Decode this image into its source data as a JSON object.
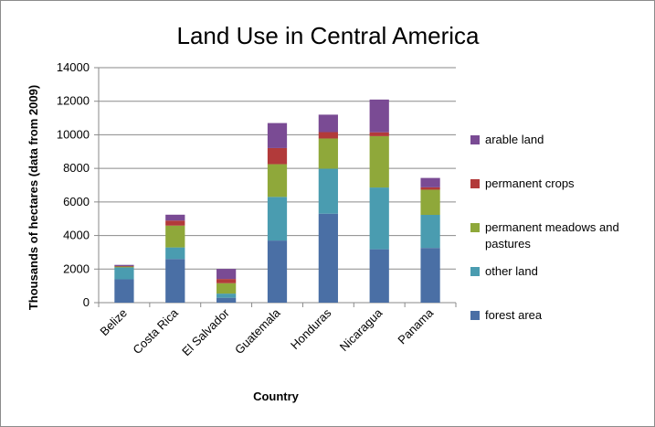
{
  "chart_data": {
    "type": "bar",
    "stacked": true,
    "title": "Land Use in Central America",
    "xlabel": "Country",
    "ylabel": "Thousands of hectares (data from 2009)",
    "ylim": [
      0,
      14000
    ],
    "yticks": [
      0,
      2000,
      4000,
      6000,
      8000,
      10000,
      12000,
      14000
    ],
    "grid": true,
    "legend_position": "right",
    "categories": [
      "Belize",
      "Costa Rica",
      "El Salvador",
      "Guatemala",
      "Honduras",
      "Nicaragua",
      "Panama"
    ],
    "series": [
      {
        "name": "forest area",
        "color": "#4a6fa5",
        "values": [
          1390,
          2600,
          290,
          3700,
          5300,
          3180,
          3260
        ]
      },
      {
        "name": "other land",
        "color": "#4a9cb0",
        "values": [
          710,
          690,
          250,
          2600,
          2680,
          3680,
          1970
        ]
      },
      {
        "name": "permanent meadows and pastures",
        "color": "#8fa83a",
        "values": [
          50,
          1300,
          620,
          1950,
          1800,
          3060,
          1500
        ]
      },
      {
        "name": "permanent crops",
        "color": "#b23a3a",
        "values": [
          30,
          300,
          250,
          960,
          380,
          230,
          140
        ]
      },
      {
        "name": "arable land",
        "color": "#7a4b94",
        "values": [
          70,
          350,
          600,
          1490,
          1040,
          1950,
          560
        ]
      }
    ]
  }
}
